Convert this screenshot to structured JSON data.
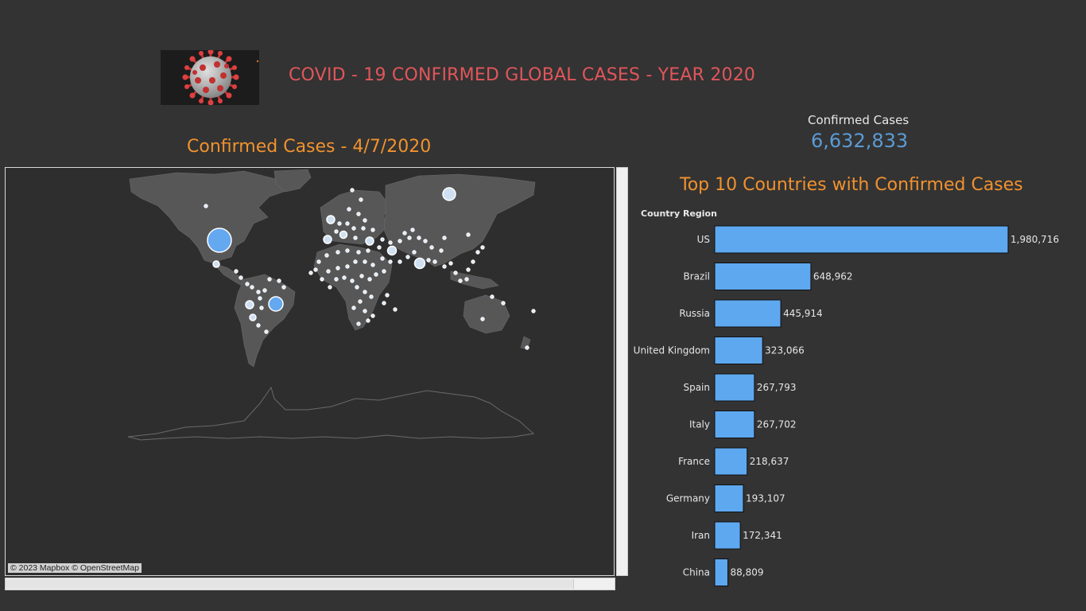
{
  "header": {
    "title": "COVID - 19  CONFIRMED GLOBAL CASES - YEAR 2020",
    "title_color": "#e0565b",
    "logo_icon": "coronavirus-icon"
  },
  "kpi": {
    "label": "Confirmed Cases",
    "value": "6,632,833",
    "value_color": "#5b9bd5"
  },
  "map": {
    "title": "Confirmed Cases - 4/7/2020",
    "title_color": "#f0922f",
    "attribution": "© 2023 Mapbox © OpenStreetMap",
    "bubble_color": "#64a8f0"
  },
  "chart_data": {
    "type": "bar",
    "orientation": "horizontal",
    "title": "Top 10 Countries with Confirmed Cases",
    "ylabel": "Country Region",
    "categories": [
      "US",
      "Brazil",
      "Russia",
      "United Kingdom",
      "Spain",
      "Italy",
      "France",
      "Germany",
      "Iran",
      "China"
    ],
    "values": [
      1980716,
      648962,
      445914,
      323066,
      267793,
      267702,
      218637,
      193107,
      172341,
      88809
    ],
    "value_labels": [
      "1,980,716",
      "648,962",
      "445,914",
      "323,066",
      "267,793",
      "267,702",
      "218,637",
      "193,107",
      "172,341",
      "88,809"
    ],
    "xlim": [
      0,
      1980716
    ],
    "bar_color": "#5ea8f0",
    "title_color": "#f0922f",
    "grid": false
  }
}
